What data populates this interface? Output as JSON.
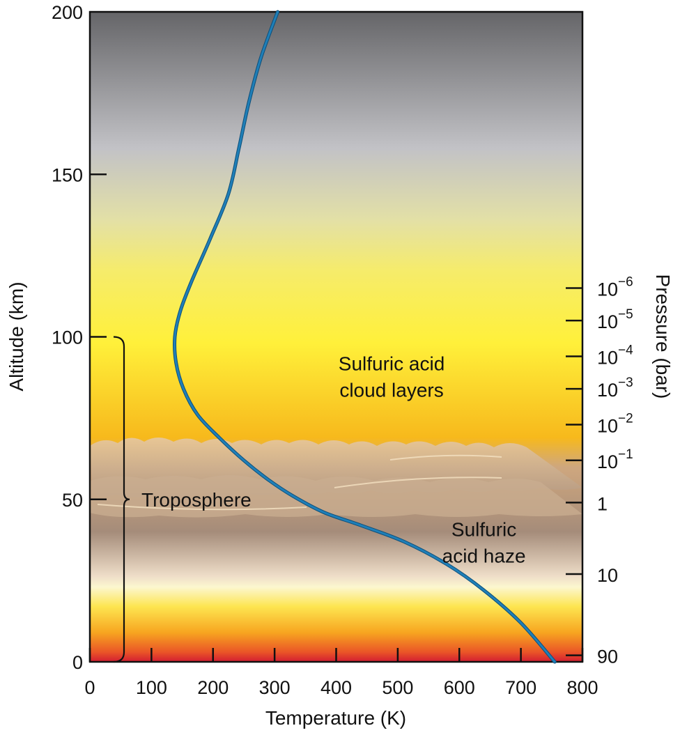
{
  "chart_data": {
    "type": "line",
    "xlabel": "Temperature (K)",
    "ylabel": "Altitude (km)",
    "y2label": "Pressure (bar)",
    "xlim": [
      0,
      800
    ],
    "ylim": [
      0,
      200
    ],
    "x_ticks": [
      0,
      100,
      200,
      300,
      400,
      500,
      600,
      700,
      800
    ],
    "y_ticks": [
      0,
      50,
      100,
      150,
      200
    ],
    "pressure_ticks": [
      {
        "altitude": 115,
        "base": "10",
        "exp": "−6"
      },
      {
        "altitude": 105,
        "base": "10",
        "exp": "−5"
      },
      {
        "altitude": 94,
        "base": "10",
        "exp": "−4"
      },
      {
        "altitude": 84,
        "base": "10",
        "exp": "−3"
      },
      {
        "altitude": 73,
        "base": "10",
        "exp": "−2"
      },
      {
        "altitude": 62,
        "base": "10",
        "exp": "−1"
      },
      {
        "altitude": 49,
        "base": "1",
        "exp": ""
      },
      {
        "altitude": 27,
        "base": "10",
        "exp": ""
      },
      {
        "altitude": 2,
        "base": "90",
        "exp": ""
      }
    ],
    "series": [
      {
        "color": "#1f7fb8",
        "points": [
          [
            755,
            0
          ],
          [
            700,
            12
          ],
          [
            640,
            22
          ],
          [
            580,
            30
          ],
          [
            510,
            37
          ],
          [
            440,
            42
          ],
          [
            380,
            46
          ],
          [
            330,
            51
          ],
          [
            290,
            56
          ],
          [
            250,
            62
          ],
          [
            210,
            69
          ],
          [
            175,
            76
          ],
          [
            152,
            84
          ],
          [
            140,
            92
          ],
          [
            138,
            100
          ],
          [
            147,
            108
          ],
          [
            165,
            117
          ],
          [
            195,
            130
          ],
          [
            225,
            144
          ],
          [
            242,
            158
          ],
          [
            258,
            172
          ],
          [
            278,
            186
          ],
          [
            305,
            200
          ]
        ]
      }
    ],
    "annotations": [
      {
        "lines": [
          "Sulfuric acid",
          "cloud layers"
        ],
        "x": 490,
        "y": 88
      },
      {
        "lines": [
          "Sulfuric",
          "acid haze"
        ],
        "x": 640,
        "y": 37
      },
      {
        "lines": [
          "Troposphere"
        ],
        "x": 80,
        "y": 50
      }
    ],
    "bracket": {
      "from_altitude": 0,
      "to_altitude": 100
    },
    "background_colors": {
      "top": "#656568",
      "upper_gray": "#c2c2c6",
      "yellow": "#fff03a",
      "orange": "#f7b91c",
      "haze": "#a58c7a",
      "light": "#fcf7cf",
      "bottom": "#d21d32"
    }
  }
}
